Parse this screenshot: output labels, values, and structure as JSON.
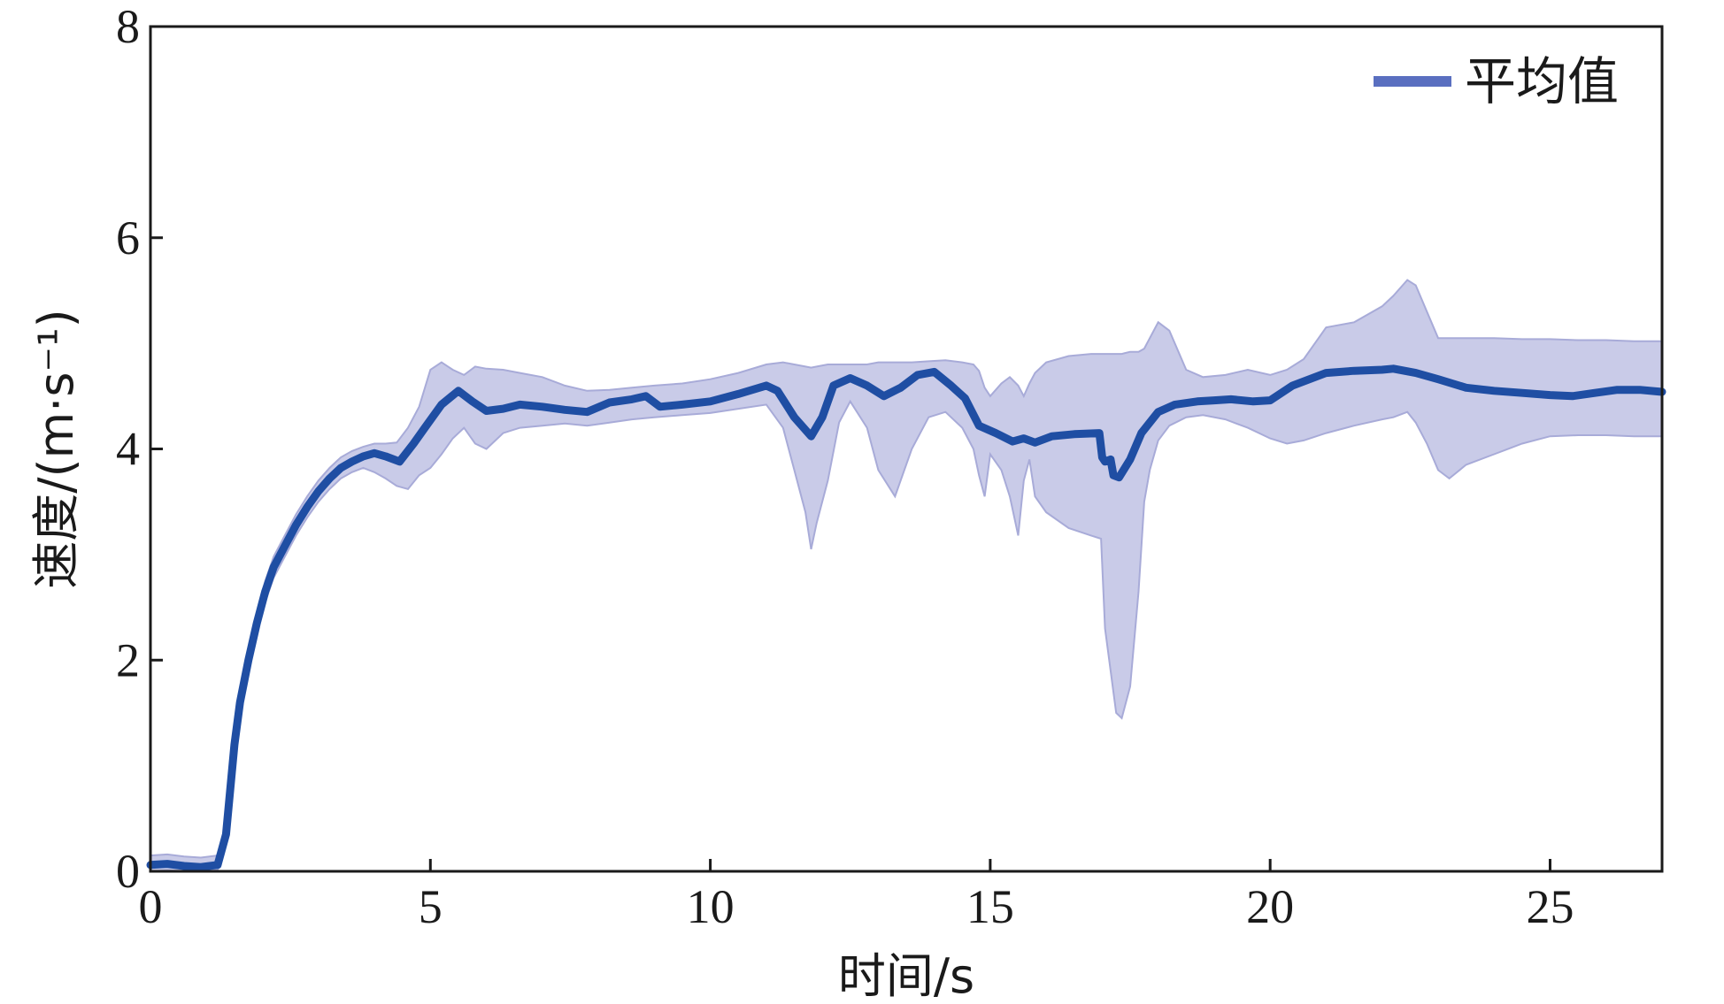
{
  "chart_data": {
    "type": "line",
    "title": "",
    "xlabel": "时间/s",
    "ylabel": "速度/(m·s⁻¹)",
    "xlim": [
      0,
      27
    ],
    "ylim": [
      0,
      8
    ],
    "x_ticks": [
      0,
      5,
      10,
      15,
      20,
      25
    ],
    "y_ticks": [
      0,
      2,
      4,
      6,
      8
    ],
    "x_tick_labels": [
      "0",
      "5",
      "10",
      "15",
      "20",
      "25"
    ],
    "y_tick_labels": [
      "0",
      "2",
      "4",
      "6",
      "8"
    ],
    "grid": false,
    "legend": {
      "position": "top-right",
      "entries": [
        "平均值"
      ]
    },
    "colors": {
      "mean_line": "#1f4ea3",
      "band_fill": "#c9cbe8",
      "band_edge": "#a8abd8",
      "axis": "#1a1a1a",
      "legend_line": "#5a6fc0"
    },
    "series": [
      {
        "name": "平均值",
        "x": [
          0,
          0.3,
          0.6,
          0.9,
          1.2,
          1.35,
          1.5,
          1.6,
          1.75,
          1.9,
          2.05,
          2.2,
          2.4,
          2.6,
          2.8,
          3.0,
          3.2,
          3.4,
          3.6,
          3.8,
          4.0,
          4.2,
          4.45,
          4.7,
          4.9,
          5.2,
          5.5,
          5.75,
          6.0,
          6.3,
          6.6,
          7.0,
          7.4,
          7.8,
          8.2,
          8.6,
          8.85,
          9.1,
          9.5,
          10.0,
          10.5,
          11.0,
          11.2,
          11.5,
          11.8,
          12.0,
          12.2,
          12.5,
          12.8,
          13.1,
          13.4,
          13.7,
          14.0,
          14.3,
          14.55,
          14.8,
          15.1,
          15.4,
          15.6,
          15.8,
          16.1,
          16.5,
          16.95,
          17.0,
          17.05,
          17.15,
          17.2,
          17.3,
          17.5,
          17.7,
          18.0,
          18.3,
          18.7,
          19.0,
          19.3,
          19.7,
          20.0,
          20.4,
          21.0,
          21.5,
          22.0,
          22.2,
          22.6,
          23.0,
          23.5,
          24.0,
          24.5,
          25.0,
          25.4,
          25.8,
          26.2,
          26.6,
          27.0
        ],
        "values": [
          0.06,
          0.07,
          0.05,
          0.04,
          0.06,
          0.35,
          1.2,
          1.6,
          2.0,
          2.35,
          2.65,
          2.88,
          3.08,
          3.28,
          3.45,
          3.6,
          3.72,
          3.82,
          3.88,
          3.93,
          3.96,
          3.93,
          3.88,
          4.05,
          4.2,
          4.42,
          4.55,
          4.45,
          4.36,
          4.38,
          4.42,
          4.4,
          4.37,
          4.35,
          4.44,
          4.47,
          4.5,
          4.4,
          4.42,
          4.45,
          4.52,
          4.6,
          4.55,
          4.3,
          4.12,
          4.3,
          4.6,
          4.67,
          4.6,
          4.5,
          4.58,
          4.7,
          4.73,
          4.6,
          4.48,
          4.22,
          4.15,
          4.07,
          4.1,
          4.06,
          4.12,
          4.14,
          4.15,
          3.92,
          3.88,
          3.9,
          3.75,
          3.73,
          3.9,
          4.15,
          4.35,
          4.42,
          4.45,
          4.46,
          4.47,
          4.45,
          4.46,
          4.6,
          4.72,
          4.74,
          4.75,
          4.76,
          4.72,
          4.66,
          4.58,
          4.55,
          4.53,
          4.51,
          4.5,
          4.53,
          4.56,
          4.56,
          4.54
        ]
      }
    ],
    "band": {
      "x": [
        0,
        0.3,
        0.6,
        0.9,
        1.2,
        1.35,
        1.5,
        1.6,
        1.75,
        1.9,
        2.05,
        2.2,
        2.4,
        2.6,
        2.8,
        3.0,
        3.2,
        3.4,
        3.6,
        3.8,
        4.0,
        4.2,
        4.4,
        4.6,
        4.8,
        5.0,
        5.2,
        5.4,
        5.6,
        5.8,
        6.0,
        6.3,
        6.6,
        7.0,
        7.4,
        7.8,
        8.2,
        8.6,
        9.0,
        9.5,
        10.0,
        10.5,
        11.0,
        11.3,
        11.5,
        11.7,
        11.8,
        11.9,
        12.1,
        12.3,
        12.5,
        12.8,
        13.0,
        13.3,
        13.6,
        13.9,
        14.2,
        14.5,
        14.7,
        14.8,
        14.9,
        15.0,
        15.2,
        15.35,
        15.5,
        15.6,
        15.7,
        15.8,
        16.0,
        16.4,
        16.8,
        16.98,
        17.05,
        17.15,
        17.25,
        17.35,
        17.5,
        17.65,
        17.75,
        17.85,
        18.0,
        18.2,
        18.5,
        18.8,
        19.2,
        19.6,
        20.0,
        20.3,
        20.6,
        21.0,
        21.5,
        22.0,
        22.2,
        22.45,
        22.6,
        22.8,
        23.0,
        23.2,
        23.5,
        24.0,
        24.5,
        25.0,
        25.5,
        26.0,
        26.5,
        27.0
      ],
      "upper": [
        0.15,
        0.16,
        0.14,
        0.13,
        0.15,
        0.45,
        1.3,
        1.7,
        2.1,
        2.45,
        2.75,
        2.98,
        3.18,
        3.38,
        3.55,
        3.7,
        3.82,
        3.92,
        3.98,
        4.02,
        4.05,
        4.05,
        4.06,
        4.2,
        4.4,
        4.75,
        4.82,
        4.75,
        4.7,
        4.78,
        4.76,
        4.75,
        4.72,
        4.68,
        4.6,
        4.55,
        4.56,
        4.58,
        4.6,
        4.62,
        4.66,
        4.72,
        4.8,
        4.82,
        4.8,
        4.78,
        4.77,
        4.78,
        4.8,
        4.8,
        4.8,
        4.8,
        4.82,
        4.82,
        4.82,
        4.83,
        4.84,
        4.82,
        4.8,
        4.74,
        4.58,
        4.5,
        4.62,
        4.68,
        4.6,
        4.5,
        4.62,
        4.72,
        4.82,
        4.88,
        4.9,
        4.9,
        4.9,
        4.9,
        4.9,
        4.9,
        4.92,
        4.92,
        4.95,
        5.05,
        5.2,
        5.12,
        4.75,
        4.68,
        4.7,
        4.75,
        4.7,
        4.75,
        4.85,
        5.15,
        5.2,
        5.35,
        5.45,
        5.6,
        5.55,
        5.3,
        5.05,
        5.05,
        5.05,
        5.05,
        5.04,
        5.04,
        5.03,
        5.03,
        5.02,
        5.02
      ],
      "lower": [
        0.0,
        0.01,
        0.0,
        0.0,
        0.01,
        0.25,
        1.1,
        1.5,
        1.9,
        2.25,
        2.55,
        2.78,
        2.98,
        3.18,
        3.35,
        3.5,
        3.62,
        3.72,
        3.78,
        3.82,
        3.78,
        3.72,
        3.65,
        3.62,
        3.75,
        3.82,
        3.95,
        4.1,
        4.2,
        4.05,
        4.0,
        4.15,
        4.2,
        4.22,
        4.24,
        4.22,
        4.25,
        4.28,
        4.3,
        4.32,
        4.34,
        4.38,
        4.42,
        4.2,
        3.8,
        3.4,
        3.05,
        3.3,
        3.7,
        4.25,
        4.45,
        4.2,
        3.8,
        3.55,
        4.0,
        4.3,
        4.35,
        4.2,
        4.0,
        3.75,
        3.55,
        3.95,
        3.8,
        3.55,
        3.18,
        3.7,
        3.9,
        3.55,
        3.4,
        3.25,
        3.18,
        3.15,
        2.3,
        1.9,
        1.5,
        1.45,
        1.75,
        2.65,
        3.5,
        3.8,
        4.08,
        4.22,
        4.3,
        4.32,
        4.28,
        4.2,
        4.1,
        4.05,
        4.08,
        4.15,
        4.22,
        4.28,
        4.3,
        4.35,
        4.25,
        4.05,
        3.8,
        3.72,
        3.85,
        3.95,
        4.05,
        4.12,
        4.13,
        4.13,
        4.12,
        4.12
      ]
    }
  }
}
